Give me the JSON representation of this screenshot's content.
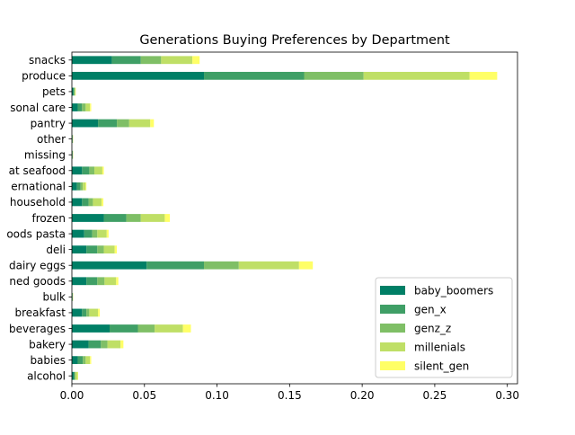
{
  "chart_data": {
    "type": "bar",
    "orientation": "horizontal",
    "stacked": true,
    "title": "Generations Buying Preferences by Department",
    "xlabel": "",
    "ylabel": "",
    "xlim": [
      0.0,
      0.307
    ],
    "xticks": [
      "0.00",
      "0.05",
      "0.10",
      "0.15",
      "0.20",
      "0.25",
      "0.30"
    ],
    "xtick_values": [
      0.0,
      0.05,
      0.1,
      0.15,
      0.2,
      0.25,
      0.3
    ],
    "grid": false,
    "legend_position": "lower-right",
    "categories": [
      "alcohol",
      "babies",
      "bakery",
      "beverages",
      "breakfast",
      "bulk",
      "canned goods",
      "dairy eggs",
      "deli",
      "dry goods pasta",
      "frozen",
      "household",
      "international",
      "meat seafood",
      "missing",
      "other",
      "pantry",
      "personal care",
      "pets",
      "produce",
      "snacks"
    ],
    "category_labels": [
      "alcohol",
      "babies",
      "bakery",
      "beverages",
      "breakfast",
      "bulk",
      "ned goods",
      "dairy eggs",
      "deli",
      "oods pasta",
      "frozen",
      "household",
      "ernational",
      "at seafood",
      "missing",
      "other",
      "pantry",
      "sonal care",
      "pets",
      "produce",
      "snacks"
    ],
    "series": [
      {
        "name": "baby_boomers",
        "color": "#007f66",
        "values": [
          0.0012,
          0.004,
          0.0115,
          0.026,
          0.007,
          0.0003,
          0.01,
          0.0515,
          0.01,
          0.0085,
          0.022,
          0.007,
          0.0035,
          0.007,
          0.0003,
          0.0003,
          0.018,
          0.004,
          0.001,
          0.091,
          0.0275
        ]
      },
      {
        "name": "gen_x",
        "color": "#3f9f66",
        "values": [
          0.0008,
          0.0035,
          0.0085,
          0.0195,
          0.003,
          0.0002,
          0.0075,
          0.0395,
          0.0075,
          0.0055,
          0.0155,
          0.0045,
          0.0025,
          0.005,
          0.0002,
          0.0002,
          0.013,
          0.003,
          0.0005,
          0.069,
          0.02
        ]
      },
      {
        "name": "genz_z",
        "color": "#7fbf66",
        "values": [
          0.0005,
          0.002,
          0.0045,
          0.0115,
          0.002,
          0.0001,
          0.005,
          0.024,
          0.0045,
          0.0035,
          0.01,
          0.003,
          0.0015,
          0.0035,
          0.0001,
          0.0001,
          0.0085,
          0.0025,
          0.0005,
          0.041,
          0.014
        ]
      },
      {
        "name": "millenials",
        "color": "#bfdf66",
        "values": [
          0.0015,
          0.003,
          0.009,
          0.0195,
          0.006,
          0.0002,
          0.008,
          0.0415,
          0.0075,
          0.0065,
          0.0165,
          0.006,
          0.002,
          0.0055,
          0.0002,
          0.0002,
          0.0145,
          0.003,
          0.0005,
          0.073,
          0.0215
        ]
      },
      {
        "name": "silent_gen",
        "color": "#ffff66",
        "values": [
          0.0003,
          0.0008,
          0.002,
          0.0055,
          0.0012,
          0.0001,
          0.0015,
          0.0095,
          0.0015,
          0.0013,
          0.0035,
          0.0012,
          0.0005,
          0.001,
          0.0001,
          0.0001,
          0.0025,
          0.0008,
          0.0002,
          0.019,
          0.005
        ]
      }
    ]
  }
}
